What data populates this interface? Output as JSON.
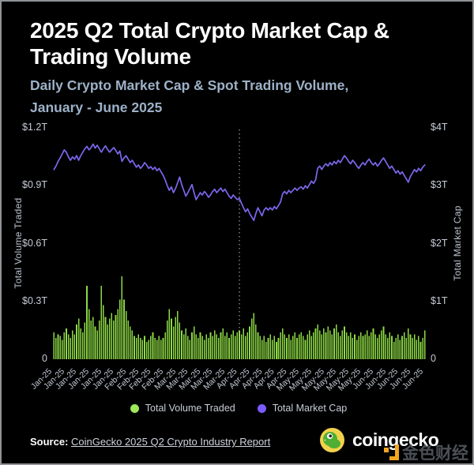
{
  "header": {
    "title_line1": "2025 Q2 Total Crypto Market Cap &",
    "title_line2": "Trading Volume",
    "subtitle_line1": "Daily Crypto Market Cap & Spot Trading Volume,",
    "subtitle_line2": "January - June 2025"
  },
  "chart_data": {
    "type": "bar+line combo",
    "title": "2025 Q2 Total Crypto Market Cap & Trading Volume",
    "left_axis": {
      "label": "Total Volume Traded",
      "max": 1.2,
      "tick_values": [
        1.2,
        0.9,
        0.6,
        0.3,
        0
      ],
      "tick_labels": [
        "$1.2T",
        "$0.9T",
        "$0.6T",
        "$0.3T",
        "0"
      ]
    },
    "right_axis": {
      "label": "Total Market Cap",
      "max": 4,
      "tick_values": [
        4,
        3,
        2,
        1,
        0
      ],
      "tick_labels": [
        "$4T",
        "$3T",
        "$2T",
        "$1T",
        "0"
      ]
    },
    "x_tick_indices": [
      0,
      6,
      12,
      18,
      24,
      30,
      36,
      42,
      48,
      54,
      60,
      66,
      72,
      78,
      84,
      90,
      96,
      102,
      108,
      114,
      120,
      126,
      132,
      138,
      144,
      150,
      156,
      162,
      168,
      174,
      180
    ],
    "x_tick_labels": [
      "Jan-25",
      "Jan-25",
      "Jan-25",
      "Jan-25",
      "Jan-25",
      "Jan-25",
      "Feb-25",
      "Feb-25",
      "Feb-25",
      "Feb-25",
      "Mar-25",
      "Mar-25",
      "Mar-25",
      "Mar-25",
      "Mar-25",
      "Apr-25",
      "Apr-25",
      "Apr-25",
      "Apr-25",
      "Apr-25",
      "May-25",
      "May-25",
      "May-25",
      "May-25",
      "May-25",
      "May-25",
      "Jun-25",
      "Jun-25",
      "Jun-25",
      "Jun-25",
      "Jun-25"
    ],
    "divider_index": 90,
    "divider_color": "#b6bcc4",
    "series": [
      {
        "name": "Total Volume Traded",
        "type": "bar",
        "axis": "left",
        "color": "#8CD944",
        "unit": "T USD",
        "values": [
          0.14,
          0.11,
          0.13,
          0.12,
          0.1,
          0.14,
          0.16,
          0.13,
          0.11,
          0.15,
          0.13,
          0.18,
          0.21,
          0.16,
          0.14,
          0.19,
          0.38,
          0.26,
          0.2,
          0.22,
          0.17,
          0.15,
          0.2,
          0.38,
          0.28,
          0.22,
          0.18,
          0.21,
          0.24,
          0.2,
          0.23,
          0.26,
          0.31,
          0.43,
          0.31,
          0.25,
          0.2,
          0.17,
          0.15,
          0.12,
          0.11,
          0.13,
          0.11,
          0.1,
          0.12,
          0.09,
          0.1,
          0.12,
          0.14,
          0.11,
          0.1,
          0.12,
          0.1,
          0.11,
          0.14,
          0.2,
          0.26,
          0.21,
          0.17,
          0.22,
          0.25,
          0.19,
          0.15,
          0.13,
          0.16,
          0.12,
          0.1,
          0.14,
          0.17,
          0.13,
          0.11,
          0.14,
          0.12,
          0.1,
          0.13,
          0.11,
          0.14,
          0.12,
          0.15,
          0.13,
          0.11,
          0.14,
          0.16,
          0.12,
          0.14,
          0.11,
          0.13,
          0.15,
          0.12,
          0.14,
          0.15,
          0.13,
          0.16,
          0.12,
          0.14,
          0.17,
          0.21,
          0.24,
          0.18,
          0.14,
          0.12,
          0.1,
          0.12,
          0.09,
          0.11,
          0.13,
          0.1,
          0.12,
          0.09,
          0.11,
          0.14,
          0.16,
          0.13,
          0.11,
          0.13,
          0.1,
          0.12,
          0.14,
          0.11,
          0.13,
          0.14,
          0.12,
          0.1,
          0.13,
          0.15,
          0.12,
          0.14,
          0.16,
          0.18,
          0.15,
          0.13,
          0.16,
          0.14,
          0.17,
          0.15,
          0.13,
          0.16,
          0.18,
          0.14,
          0.12,
          0.15,
          0.17,
          0.14,
          0.12,
          0.14,
          0.11,
          0.13,
          0.1,
          0.12,
          0.14,
          0.12,
          0.13,
          0.15,
          0.12,
          0.14,
          0.16,
          0.13,
          0.11,
          0.13,
          0.15,
          0.17,
          0.13,
          0.11,
          0.14,
          0.12,
          0.09,
          0.11,
          0.13,
          0.1,
          0.12,
          0.14,
          0.11,
          0.16,
          0.13,
          0.11,
          0.13,
          0.1,
          0.12,
          0.09,
          0.11,
          0.15
        ]
      },
      {
        "name": "Total Market Cap",
        "type": "line",
        "axis": "right",
        "color": "#7B68EE",
        "unit": "T USD",
        "values": [
          3.28,
          3.34,
          3.42,
          3.48,
          3.55,
          3.62,
          3.58,
          3.5,
          3.44,
          3.5,
          3.46,
          3.52,
          3.44,
          3.52,
          3.58,
          3.64,
          3.68,
          3.62,
          3.66,
          3.72,
          3.65,
          3.7,
          3.64,
          3.58,
          3.64,
          3.69,
          3.63,
          3.58,
          3.62,
          3.66,
          3.61,
          3.55,
          3.6,
          3.42,
          3.48,
          3.52,
          3.46,
          3.4,
          3.44,
          3.38,
          3.32,
          3.36,
          3.3,
          3.34,
          3.4,
          3.36,
          3.3,
          3.33,
          3.28,
          3.32,
          3.26,
          3.3,
          3.24,
          3.18,
          3.1,
          3.0,
          2.92,
          2.98,
          2.88,
          2.95,
          3.05,
          3.15,
          3.02,
          2.92,
          2.82,
          2.88,
          2.95,
          3.02,
          2.88,
          2.76,
          2.82,
          2.88,
          2.84,
          2.9,
          2.86,
          2.8,
          2.84,
          2.9,
          2.94,
          2.88,
          2.92,
          2.96,
          2.9,
          2.94,
          2.88,
          2.82,
          2.78,
          2.84,
          2.8,
          2.76,
          2.78,
          2.7,
          2.62,
          2.55,
          2.6,
          2.52,
          2.46,
          2.4,
          2.52,
          2.62,
          2.55,
          2.48,
          2.58,
          2.62,
          2.58,
          2.62,
          2.58,
          2.64,
          2.6,
          2.66,
          2.72,
          2.86,
          2.9,
          2.86,
          2.92,
          2.88,
          2.92,
          2.96,
          2.92,
          2.96,
          2.98,
          2.94,
          3.0,
          2.96,
          3.02,
          3.08,
          3.04,
          3.1,
          3.3,
          3.34,
          3.28,
          3.34,
          3.38,
          3.34,
          3.4,
          3.36,
          3.42,
          3.38,
          3.44,
          3.4,
          3.46,
          3.52,
          3.48,
          3.42,
          3.38,
          3.44,
          3.4,
          3.34,
          3.3,
          3.36,
          3.4,
          3.36,
          3.42,
          3.46,
          3.4,
          3.36,
          3.4,
          3.34,
          3.38,
          3.44,
          3.48,
          3.42,
          3.36,
          3.3,
          3.34,
          3.28,
          3.22,
          3.26,
          3.2,
          3.24,
          3.18,
          3.12,
          3.06,
          3.16,
          3.22,
          3.28,
          3.24,
          3.3,
          3.26,
          3.32,
          3.36
        ]
      }
    ]
  },
  "legend": {
    "items": [
      {
        "label": "Total Volume Traded",
        "color": "#9FE85A"
      },
      {
        "label": "Total Market Cap",
        "color": "#7C5CFC"
      }
    ]
  },
  "footer": {
    "source_label": "Source:",
    "source_link": "CoinGecko 2025 Q2 Crypto Industry Report",
    "brand_name": "coingecko",
    "watermark_text": "金色财经"
  }
}
